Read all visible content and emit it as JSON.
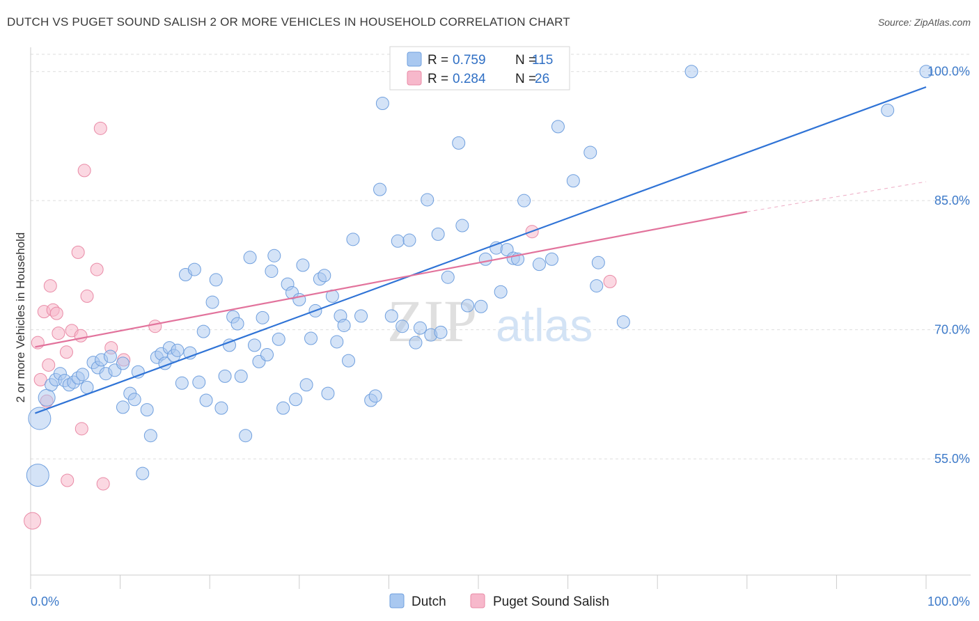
{
  "header": {
    "title": "DUTCH VS PUGET SOUND SALISH 2 OR MORE VEHICLES IN HOUSEHOLD CORRELATION CHART",
    "source": "Source: ZipAtlas.com"
  },
  "watermark": {
    "zip": "ZIP",
    "atlas": "atlas"
  },
  "legend": {
    "r_label": "R =",
    "n_label": "N =",
    "items": [
      {
        "name": "Dutch",
        "r": "0.759",
        "n": "115",
        "color": "#a9c8f0"
      },
      {
        "name": "Puget Sound Salish",
        "r": "0.284",
        "n": "26",
        "color": "#f7b8cb"
      }
    ]
  },
  "colors": {
    "dutch_fill": "#a9c8f0",
    "dutch_stroke": "#6f9fde",
    "dutch_line": "#2f73d6",
    "salish_fill": "#f7b8cb",
    "salish_stroke": "#e98aa6",
    "salish_line": "#e2739c",
    "grid": "#dddddd",
    "axis_text": "#3d7ac9"
  },
  "chart_data": {
    "type": "scatter",
    "title": "DUTCH VS PUGET SOUND SALISH 2 OR MORE VEHICLES IN HOUSEHOLD CORRELATION CHART",
    "xlabel": "",
    "ylabel": "2 or more Vehicles in Household",
    "xlim": [
      0,
      100
    ],
    "ylim": [
      41.5,
      102
    ],
    "x_tick_labels": [
      "0.0%",
      "100.0%"
    ],
    "y_ticks": [
      55,
      70,
      85,
      100
    ],
    "y_tick_labels": [
      "55.0%",
      "70.0%",
      "85.0%",
      "100.0%"
    ],
    "grid": true,
    "legend_position": "top-center",
    "series": [
      {
        "name": "Dutch",
        "trend": {
          "x": [
            0.5,
            100
          ],
          "y": [
            60.3,
            98.2
          ]
        },
        "points": [
          {
            "x": 1.0,
            "y": 59.7,
            "s": 3
          },
          {
            "x": 0.8,
            "y": 53.1,
            "s": 3
          },
          {
            "x": 1.8,
            "y": 62.1,
            "s": 2
          },
          {
            "x": 2.3,
            "y": 63.6,
            "s": 1
          },
          {
            "x": 2.8,
            "y": 64.2,
            "s": 1
          },
          {
            "x": 3.3,
            "y": 64.9,
            "s": 1
          },
          {
            "x": 3.8,
            "y": 64.1,
            "s": 1
          },
          {
            "x": 4.3,
            "y": 63.6,
            "s": 1
          },
          {
            "x": 4.8,
            "y": 63.9,
            "s": 1
          },
          {
            "x": 5.3,
            "y": 64.4,
            "s": 1
          },
          {
            "x": 5.8,
            "y": 64.8,
            "s": 1
          },
          {
            "x": 6.3,
            "y": 63.3,
            "s": 1
          },
          {
            "x": 7.0,
            "y": 66.2,
            "s": 1
          },
          {
            "x": 7.5,
            "y": 65.6,
            "s": 1
          },
          {
            "x": 7.9,
            "y": 66.5,
            "s": 1
          },
          {
            "x": 8.4,
            "y": 64.9,
            "s": 1
          },
          {
            "x": 8.9,
            "y": 66.9,
            "s": 1
          },
          {
            "x": 9.4,
            "y": 65.3,
            "s": 1
          },
          {
            "x": 10.3,
            "y": 61.0,
            "s": 1
          },
          {
            "x": 10.3,
            "y": 66.1,
            "s": 1
          },
          {
            "x": 11.1,
            "y": 62.6,
            "s": 1
          },
          {
            "x": 11.6,
            "y": 61.9,
            "s": 1
          },
          {
            "x": 12.0,
            "y": 65.1,
            "s": 1
          },
          {
            "x": 12.5,
            "y": 53.3,
            "s": 1
          },
          {
            "x": 13.0,
            "y": 60.7,
            "s": 1
          },
          {
            "x": 13.4,
            "y": 57.7,
            "s": 1
          },
          {
            "x": 14.1,
            "y": 66.8,
            "s": 1
          },
          {
            "x": 14.6,
            "y": 67.2,
            "s": 1
          },
          {
            "x": 15.0,
            "y": 66.1,
            "s": 1
          },
          {
            "x": 15.5,
            "y": 67.9,
            "s": 1
          },
          {
            "x": 16.0,
            "y": 67.0,
            "s": 1
          },
          {
            "x": 16.4,
            "y": 67.6,
            "s": 1
          },
          {
            "x": 16.9,
            "y": 63.8,
            "s": 1
          },
          {
            "x": 17.3,
            "y": 76.4,
            "s": 1
          },
          {
            "x": 17.8,
            "y": 67.3,
            "s": 1
          },
          {
            "x": 18.3,
            "y": 77.0,
            "s": 1
          },
          {
            "x": 18.8,
            "y": 63.9,
            "s": 1
          },
          {
            "x": 19.3,
            "y": 69.8,
            "s": 1
          },
          {
            "x": 19.6,
            "y": 61.8,
            "s": 1
          },
          {
            "x": 20.3,
            "y": 73.2,
            "s": 1
          },
          {
            "x": 20.7,
            "y": 75.8,
            "s": 1
          },
          {
            "x": 21.3,
            "y": 60.9,
            "s": 1
          },
          {
            "x": 21.7,
            "y": 64.6,
            "s": 1
          },
          {
            "x": 22.2,
            "y": 68.2,
            "s": 1
          },
          {
            "x": 22.6,
            "y": 71.5,
            "s": 1
          },
          {
            "x": 23.1,
            "y": 70.7,
            "s": 1
          },
          {
            "x": 23.5,
            "y": 64.6,
            "s": 1
          },
          {
            "x": 24.0,
            "y": 57.7,
            "s": 1
          },
          {
            "x": 24.5,
            "y": 78.4,
            "s": 1
          },
          {
            "x": 25.0,
            "y": 68.2,
            "s": 1
          },
          {
            "x": 25.5,
            "y": 66.3,
            "s": 1
          },
          {
            "x": 25.9,
            "y": 71.4,
            "s": 1
          },
          {
            "x": 26.4,
            "y": 67.1,
            "s": 1
          },
          {
            "x": 26.9,
            "y": 76.8,
            "s": 1
          },
          {
            "x": 27.2,
            "y": 78.6,
            "s": 1
          },
          {
            "x": 27.7,
            "y": 68.9,
            "s": 1
          },
          {
            "x": 28.2,
            "y": 60.9,
            "s": 1
          },
          {
            "x": 28.7,
            "y": 75.3,
            "s": 1
          },
          {
            "x": 29.2,
            "y": 74.3,
            "s": 1
          },
          {
            "x": 29.6,
            "y": 61.9,
            "s": 1
          },
          {
            "x": 30.0,
            "y": 73.5,
            "s": 1
          },
          {
            "x": 30.4,
            "y": 77.5,
            "s": 1
          },
          {
            "x": 30.8,
            "y": 63.6,
            "s": 1
          },
          {
            "x": 31.3,
            "y": 69.0,
            "s": 1
          },
          {
            "x": 31.8,
            "y": 72.2,
            "s": 1
          },
          {
            "x": 32.3,
            "y": 75.9,
            "s": 1
          },
          {
            "x": 32.8,
            "y": 76.3,
            "s": 1
          },
          {
            "x": 33.2,
            "y": 62.6,
            "s": 1
          },
          {
            "x": 33.7,
            "y": 73.9,
            "s": 1
          },
          {
            "x": 34.2,
            "y": 68.6,
            "s": 1
          },
          {
            "x": 34.6,
            "y": 71.6,
            "s": 1
          },
          {
            "x": 35.0,
            "y": 70.5,
            "s": 1
          },
          {
            "x": 35.5,
            "y": 66.4,
            "s": 1
          },
          {
            "x": 36.0,
            "y": 80.5,
            "s": 1
          },
          {
            "x": 36.9,
            "y": 71.6,
            "s": 1
          },
          {
            "x": 38.0,
            "y": 61.8,
            "s": 1
          },
          {
            "x": 38.5,
            "y": 62.3,
            "s": 1
          },
          {
            "x": 39.3,
            "y": 96.3,
            "s": 1
          },
          {
            "x": 39.0,
            "y": 86.3,
            "s": 1
          },
          {
            "x": 40.3,
            "y": 71.6,
            "s": 1
          },
          {
            "x": 41.0,
            "y": 80.3,
            "s": 1
          },
          {
            "x": 41.5,
            "y": 70.4,
            "s": 1
          },
          {
            "x": 42.3,
            "y": 80.4,
            "s": 1
          },
          {
            "x": 43.0,
            "y": 68.5,
            "s": 1
          },
          {
            "x": 43.5,
            "y": 70.2,
            "s": 1
          },
          {
            "x": 44.3,
            "y": 85.1,
            "s": 1
          },
          {
            "x": 44.7,
            "y": 69.4,
            "s": 1
          },
          {
            "x": 45.5,
            "y": 81.1,
            "s": 1
          },
          {
            "x": 45.8,
            "y": 69.7,
            "s": 1
          },
          {
            "x": 46.6,
            "y": 76.1,
            "s": 1
          },
          {
            "x": 47.8,
            "y": 91.7,
            "s": 1
          },
          {
            "x": 48.2,
            "y": 82.1,
            "s": 1
          },
          {
            "x": 48.8,
            "y": 72.8,
            "s": 1
          },
          {
            "x": 50.3,
            "y": 72.7,
            "s": 1
          },
          {
            "x": 50.8,
            "y": 78.2,
            "s": 1
          },
          {
            "x": 52.0,
            "y": 79.5,
            "s": 1
          },
          {
            "x": 52.5,
            "y": 74.4,
            "s": 1
          },
          {
            "x": 53.2,
            "y": 79.3,
            "s": 1
          },
          {
            "x": 53.9,
            "y": 78.3,
            "s": 1
          },
          {
            "x": 54.4,
            "y": 78.2,
            "s": 1
          },
          {
            "x": 55.0,
            "y": 100.0,
            "s": 1
          },
          {
            "x": 55.1,
            "y": 85.0,
            "s": 1
          },
          {
            "x": 56.8,
            "y": 77.6,
            "s": 1
          },
          {
            "x": 58.2,
            "y": 78.2,
            "s": 1
          },
          {
            "x": 58.9,
            "y": 93.6,
            "s": 1
          },
          {
            "x": 60.6,
            "y": 87.3,
            "s": 1
          },
          {
            "x": 62.5,
            "y": 90.6,
            "s": 1
          },
          {
            "x": 63.2,
            "y": 75.1,
            "s": 1
          },
          {
            "x": 63.4,
            "y": 77.8,
            "s": 1
          },
          {
            "x": 66.2,
            "y": 70.9,
            "s": 1
          },
          {
            "x": 73.8,
            "y": 100.0,
            "s": 1
          },
          {
            "x": 95.7,
            "y": 95.5,
            "s": 1
          },
          {
            "x": 100.0,
            "y": 100.0,
            "s": 1
          }
        ]
      },
      {
        "name": "Puget Sound Salish",
        "trend": {
          "x": [
            0.5,
            80
          ],
          "y": [
            68.0,
            83.7
          ]
        },
        "trend_dashed": {
          "x": [
            80,
            100
          ],
          "y": [
            83.7,
            87.2
          ]
        },
        "points": [
          {
            "x": 0.2,
            "y": 47.8,
            "s": 2
          },
          {
            "x": 0.8,
            "y": 68.5,
            "s": 1
          },
          {
            "x": 1.1,
            "y": 64.2,
            "s": 1
          },
          {
            "x": 1.5,
            "y": 72.1,
            "s": 1
          },
          {
            "x": 1.8,
            "y": 61.7,
            "s": 1
          },
          {
            "x": 2.0,
            "y": 65.9,
            "s": 1
          },
          {
            "x": 2.2,
            "y": 75.1,
            "s": 1
          },
          {
            "x": 2.5,
            "y": 72.3,
            "s": 1
          },
          {
            "x": 2.9,
            "y": 71.9,
            "s": 1
          },
          {
            "x": 3.1,
            "y": 69.6,
            "s": 1
          },
          {
            "x": 4.0,
            "y": 67.4,
            "s": 1
          },
          {
            "x": 4.1,
            "y": 52.5,
            "s": 1
          },
          {
            "x": 4.6,
            "y": 69.9,
            "s": 1
          },
          {
            "x": 5.3,
            "y": 79.0,
            "s": 1
          },
          {
            "x": 5.6,
            "y": 69.3,
            "s": 1
          },
          {
            "x": 5.7,
            "y": 58.5,
            "s": 1
          },
          {
            "x": 6.3,
            "y": 73.9,
            "s": 1
          },
          {
            "x": 6.0,
            "y": 88.5,
            "s": 1
          },
          {
            "x": 7.4,
            "y": 77.0,
            "s": 1
          },
          {
            "x": 7.8,
            "y": 93.4,
            "s": 1
          },
          {
            "x": 8.1,
            "y": 52.1,
            "s": 1
          },
          {
            "x": 9.0,
            "y": 67.9,
            "s": 1
          },
          {
            "x": 10.4,
            "y": 66.5,
            "s": 1
          },
          {
            "x": 13.9,
            "y": 70.4,
            "s": 1
          },
          {
            "x": 56.0,
            "y": 81.4,
            "s": 1
          },
          {
            "x": 64.7,
            "y": 75.6,
            "s": 1
          }
        ]
      }
    ]
  }
}
